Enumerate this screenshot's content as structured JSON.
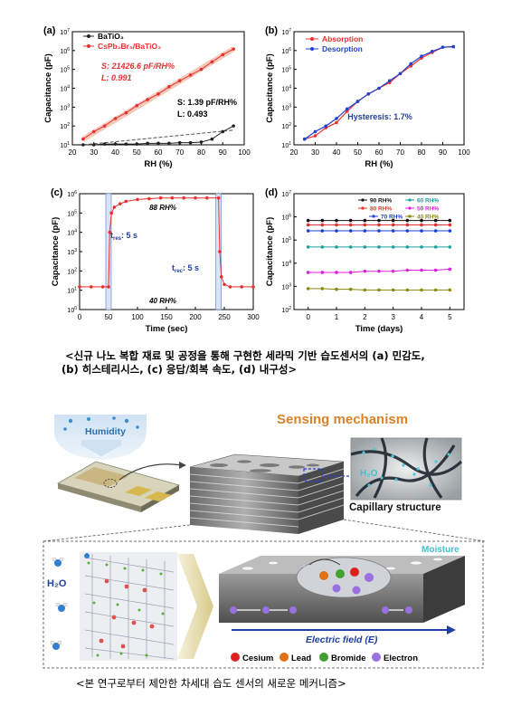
{
  "figure1": {
    "caption_line1": "<신규 나노 복합 재료 및 공정을 통해 구현한 세라믹 기반 습도센서의 (a) 민감도,",
    "caption_line2": "(b) 히스테리시스, (c) 응답/회복 속도, (d) 내구성>",
    "panels": {
      "a": {
        "label": "(a)",
        "legend": [
          "BaTiO₃",
          "CsPb₂Br₅/BaTiO₃"
        ],
        "ann1_s": "S: 21426.6 pF/RH%",
        "ann1_l": "L: 0.991",
        "ann2_s": "S: 1.39 pF/RH%",
        "ann2_l": "L: 0.493"
      },
      "b": {
        "label": "(b)",
        "legend": [
          "Absorption",
          "Desorption"
        ],
        "annotation": "Hysteresis: 1.7%"
      },
      "c": {
        "label": "(c)",
        "t_res": "5 s",
        "t_rec": "5 s",
        "high": "88 RH%",
        "low": "40 RH%"
      },
      "d": {
        "label": "(d)",
        "legend": [
          "90 RH%",
          "80 RH%",
          "70 RH%",
          "60 RH%",
          "50 RH%",
          "40 RH%"
        ]
      }
    }
  },
  "chart_data": [
    {
      "type": "scatter",
      "panel": "a",
      "xlabel": "RH (%)",
      "ylabel": "Capacitance (pF)",
      "xlim": [
        20,
        100
      ],
      "ylim_log10": [
        1,
        7
      ],
      "yscale": "log",
      "xticks": [
        20,
        30,
        40,
        50,
        60,
        70,
        80,
        90,
        100
      ],
      "series": [
        {
          "name": "BaTiO₃",
          "color": "#222222",
          "x": [
            25,
            30,
            35,
            40,
            45,
            50,
            55,
            60,
            65,
            70,
            75,
            80,
            85,
            90,
            95
          ],
          "y": [
            10,
            10,
            11,
            11,
            11,
            11,
            12,
            12,
            12,
            13,
            13,
            14,
            20,
            50,
            100
          ]
        },
        {
          "name": "CsPb₂Br₅/BaTiO₃",
          "color": "#e83030",
          "x": [
            25,
            30,
            35,
            40,
            45,
            50,
            55,
            60,
            65,
            70,
            75,
            80,
            85,
            90,
            95
          ],
          "y": [
            20,
            50,
            100,
            250,
            500,
            1200,
            2500,
            5000,
            12000,
            25000,
            50000,
            100000,
            250000,
            600000,
            1200000
          ]
        }
      ]
    },
    {
      "type": "line",
      "panel": "b",
      "xlabel": "RH (%)",
      "ylabel": "Capacitance (pF)",
      "xlim": [
        20,
        100
      ],
      "ylim_log10": [
        1,
        7
      ],
      "yscale": "log",
      "xticks": [
        20,
        30,
        40,
        50,
        60,
        70,
        80,
        90,
        100
      ],
      "series": [
        {
          "name": "Absorption",
          "color": "#e83030",
          "x": [
            25,
            30,
            35,
            40,
            45,
            50,
            55,
            60,
            65,
            70,
            75,
            80,
            85,
            90,
            95
          ],
          "y": [
            20,
            30,
            80,
            150,
            600,
            2000,
            5000,
            10000,
            20000,
            60000,
            150000,
            400000,
            800000,
            1500000,
            1600000
          ]
        },
        {
          "name": "Desorption",
          "color": "#2040d0",
          "x": [
            25,
            30,
            35,
            40,
            45,
            50,
            55,
            60,
            65,
            70,
            75,
            80,
            85,
            90,
            95
          ],
          "y": [
            20,
            50,
            100,
            250,
            800,
            2000,
            5000,
            10000,
            25000,
            60000,
            200000,
            500000,
            900000,
            1500000,
            1600000
          ]
        }
      ]
    },
    {
      "type": "line",
      "panel": "c",
      "xlabel": "Time (sec)",
      "ylabel": "Capacitance (pF)",
      "xlim": [
        0,
        300
      ],
      "ylim_log10": [
        0,
        6
      ],
      "yscale": "log",
      "xticks": [
        0,
        50,
        100,
        150,
        200,
        250,
        300
      ],
      "series": [
        {
          "name": "response",
          "color": "#e83030",
          "x": [
            0,
            20,
            40,
            50,
            52,
            55,
            60,
            70,
            80,
            100,
            120,
            140,
            160,
            180,
            200,
            220,
            240,
            242,
            245,
            250,
            260,
            280,
            300
          ],
          "y": [
            15,
            15,
            15,
            15,
            10000,
            100000,
            200000,
            300000,
            400000,
            500000,
            550000,
            600000,
            600000,
            600000,
            600000,
            600000,
            600000,
            1000,
            50,
            20,
            15,
            15,
            15
          ]
        }
      ]
    },
    {
      "type": "line",
      "panel": "d",
      "xlabel": "Time (days)",
      "ylabel": "Capacitance (pF)",
      "xlim": [
        -0.5,
        5.5
      ],
      "ylim_log10": [
        2,
        7
      ],
      "yscale": "log",
      "xticks": [
        0,
        1,
        2,
        3,
        4,
        5
      ],
      "series": [
        {
          "name": "90 RH%",
          "color": "#111111",
          "x": [
            0,
            0.5,
            1,
            1.5,
            2,
            2.5,
            3,
            3.5,
            4,
            4.5,
            5
          ],
          "y": [
            700000,
            700000,
            700000,
            700000,
            700000,
            700000,
            700000,
            700000,
            700000,
            700000,
            700000
          ]
        },
        {
          "name": "80 RH%",
          "color": "#e83030",
          "x": [
            0,
            0.5,
            1,
            1.5,
            2,
            2.5,
            3,
            3.5,
            4,
            4.5,
            5
          ],
          "y": [
            450000,
            450000,
            450000,
            450000,
            450000,
            450000,
            450000,
            450000,
            450000,
            450000,
            450000
          ]
        },
        {
          "name": "70 RH%",
          "color": "#2040d0",
          "x": [
            0,
            0.5,
            1,
            1.5,
            2,
            2.5,
            3,
            3.5,
            4,
            4.5,
            5
          ],
          "y": [
            250000,
            250000,
            250000,
            250000,
            250000,
            250000,
            250000,
            250000,
            250000,
            250000,
            250000
          ]
        },
        {
          "name": "60 RH%",
          "color": "#1aa0a0",
          "x": [
            0,
            0.5,
            1,
            1.5,
            2,
            2.5,
            3,
            3.5,
            4,
            4.5,
            5
          ],
          "y": [
            50000,
            50000,
            50000,
            50000,
            50000,
            50000,
            50000,
            50000,
            50000,
            50000,
            50000
          ]
        },
        {
          "name": "50 RH%",
          "color": "#e020e0",
          "x": [
            0,
            0.5,
            1,
            1.5,
            2,
            2.5,
            3,
            3.5,
            4,
            4.5,
            5
          ],
          "y": [
            4000,
            4000,
            4000,
            4000,
            4500,
            4500,
            4500,
            5000,
            5000,
            5000,
            5500
          ]
        },
        {
          "name": "40 RH%",
          "color": "#8a8a10",
          "x": [
            0,
            0.5,
            1,
            1.5,
            2,
            2.5,
            3,
            3.5,
            4,
            4.5,
            5
          ],
          "y": [
            800,
            800,
            750,
            750,
            700,
            700,
            700,
            700,
            700,
            700,
            700
          ]
        }
      ]
    }
  ],
  "figure2": {
    "humidity": "Humidity",
    "sensing_mechanism": "Sensing mechanism",
    "capillary": "Capillary structure",
    "h2o_left": "H₂O",
    "h2o_inset": "H₂O",
    "moisture": "Moisture",
    "electric_field": "Electric field (E)",
    "legend": [
      {
        "label": "Cesium",
        "color": "#e02020"
      },
      {
        "label": "Lead",
        "color": "#e07010"
      },
      {
        "label": "Bromide",
        "color": "#40a030"
      },
      {
        "label": "Electron",
        "color": "#9a70e0"
      }
    ],
    "caption": "<본 연구로부터 제안한 차세대 습도 센서의 새로운 메커니즘>"
  }
}
